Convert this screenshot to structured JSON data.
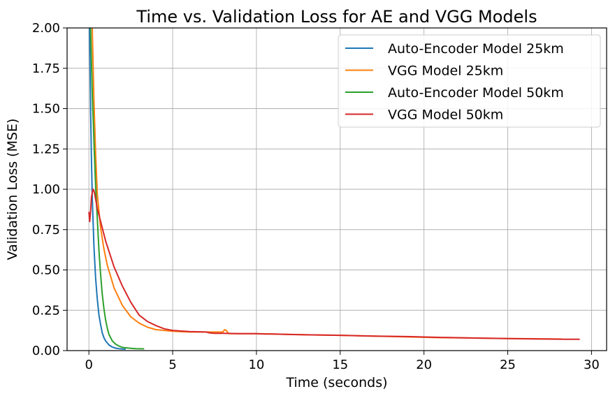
{
  "chart_data": {
    "type": "line",
    "title": "Time vs. Validation Loss for AE and VGG Models",
    "xlabel": "Time (seconds)",
    "ylabel": "Validation Loss (MSE)",
    "xlim": [
      -1.3,
      30.9
    ],
    "ylim": [
      0,
      2.0
    ],
    "xticks": [
      0,
      5,
      10,
      15,
      20,
      25,
      30
    ],
    "yticks": [
      0.0,
      0.25,
      0.5,
      0.75,
      1.0,
      1.25,
      1.5,
      1.75,
      2.0
    ],
    "xtick_labels": [
      "0",
      "5",
      "10",
      "15",
      "20",
      "25",
      "30"
    ],
    "ytick_labels": [
      "0.00",
      "0.25",
      "0.50",
      "0.75",
      "1.00",
      "1.25",
      "1.50",
      "1.75",
      "2.00"
    ],
    "grid": true,
    "legend_position": "top-right",
    "series": [
      {
        "name": "Auto-Encoder Model 25km",
        "color": "#1f77b4",
        "x": [
          0.0,
          0.05,
          0.1,
          0.15,
          0.2,
          0.25,
          0.3,
          0.35,
          0.4,
          0.5,
          0.6,
          0.7,
          0.8,
          0.9,
          1.0,
          1.2,
          1.4,
          1.6,
          1.8,
          2.0,
          2.2
        ],
        "y": [
          2.3,
          1.9,
          1.5,
          1.2,
          0.95,
          0.8,
          0.65,
          0.55,
          0.45,
          0.32,
          0.22,
          0.16,
          0.11,
          0.08,
          0.06,
          0.035,
          0.022,
          0.015,
          0.012,
          0.01,
          0.009
        ]
      },
      {
        "name": "VGG Model 25km",
        "color": "#ff7f0e",
        "x": [
          0.15,
          0.2,
          0.3,
          0.4,
          0.5,
          0.7,
          0.9,
          1.1,
          1.3,
          1.5,
          2.0,
          2.5,
          3.0,
          3.5,
          4.0,
          4.5,
          5.0,
          6.0,
          7.0,
          7.5,
          8.0,
          8.1,
          8.2,
          8.3,
          8.4,
          9.0,
          10.0,
          11.0,
          12.0,
          13.0,
          15.0,
          17.0,
          19.0,
          21.0,
          23.0,
          25.0,
          27.0,
          28.2
        ],
        "y": [
          2.3,
          2.0,
          1.55,
          1.22,
          0.97,
          0.76,
          0.63,
          0.53,
          0.46,
          0.39,
          0.28,
          0.21,
          0.17,
          0.145,
          0.13,
          0.125,
          0.12,
          0.115,
          0.115,
          0.115,
          0.115,
          0.13,
          0.125,
          0.11,
          0.105,
          0.105,
          0.105,
          0.103,
          0.1,
          0.098,
          0.095,
          0.09,
          0.085,
          0.08,
          0.078,
          0.075,
          0.073,
          0.072
        ]
      },
      {
        "name": "Auto-Encoder Model 50km",
        "color": "#2ca02c",
        "x": [
          0.05,
          0.1,
          0.15,
          0.2,
          0.3,
          0.4,
          0.5,
          0.6,
          0.7,
          0.8,
          0.9,
          1.0,
          1.1,
          1.2,
          1.4,
          1.6,
          1.8,
          2.0,
          2.4,
          2.8,
          3.3
        ],
        "y": [
          2.3,
          2.0,
          1.8,
          1.6,
          1.3,
          1.02,
          0.82,
          0.62,
          0.47,
          0.35,
          0.26,
          0.19,
          0.14,
          0.1,
          0.06,
          0.04,
          0.028,
          0.02,
          0.015,
          0.012,
          0.011
        ]
      },
      {
        "name": "VGG Model 50km",
        "color": "#d62728",
        "x": [
          0.0,
          0.05,
          0.1,
          0.15,
          0.2,
          0.25,
          0.3,
          0.35,
          0.4,
          0.5,
          0.7,
          1.0,
          1.5,
          2.0,
          2.5,
          3.0,
          3.5,
          4.0,
          4.5,
          5.0,
          6.0,
          7.0,
          7.2,
          7.5,
          8.0,
          9.0,
          10.0,
          10.5,
          11.0,
          12.0,
          13.0,
          15.0,
          17.0,
          19.0,
          21.0,
          23.0,
          25.0,
          27.0,
          28.5,
          29.3
        ],
        "y": [
          0.86,
          0.8,
          0.86,
          0.95,
          0.98,
          1.0,
          0.99,
          0.97,
          0.94,
          0.88,
          0.8,
          0.68,
          0.52,
          0.4,
          0.3,
          0.22,
          0.18,
          0.155,
          0.135,
          0.125,
          0.118,
          0.115,
          0.11,
          0.107,
          0.107,
          0.105,
          0.105,
          0.103,
          0.103,
          0.1,
          0.098,
          0.095,
          0.09,
          0.087,
          0.082,
          0.078,
          0.075,
          0.072,
          0.07,
          0.07
        ]
      }
    ]
  }
}
